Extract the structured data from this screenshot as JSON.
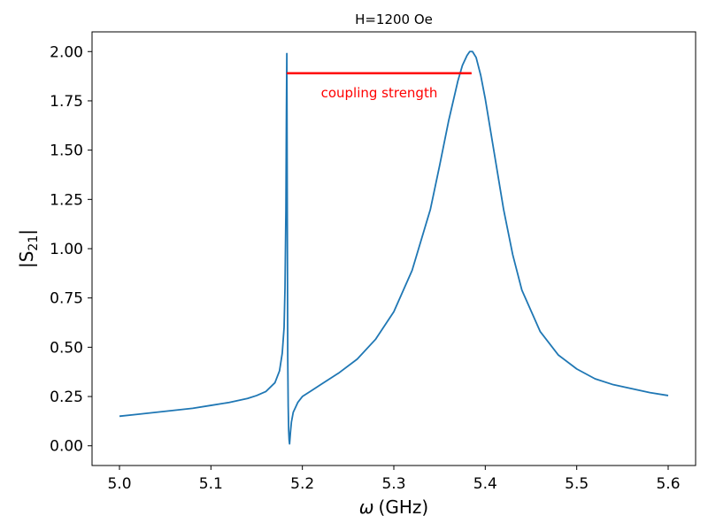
{
  "chart_data": {
    "type": "line",
    "title": "H=1200 Oe",
    "xlabel": "ω (GHz)",
    "xlabel_symbol": "ω",
    "xlabel_unit": "(GHz)",
    "ylabel": "|S21|",
    "ylabel_main": "|S",
    "ylabel_sub": "21",
    "ylabel_end": "|",
    "xlim": [
      4.97,
      5.63
    ],
    "ylim": [
      -0.1,
      2.1
    ],
    "xticks": [
      5.0,
      5.1,
      5.2,
      5.3,
      5.4,
      5.5,
      5.6
    ],
    "xtick_labels": [
      "5.0",
      "5.1",
      "5.2",
      "5.3",
      "5.4",
      "5.5",
      "5.6"
    ],
    "yticks": [
      0.0,
      0.25,
      0.5,
      0.75,
      1.0,
      1.25,
      1.5,
      1.75,
      2.0
    ],
    "ytick_labels": [
      "0.00",
      "0.25",
      "0.50",
      "0.75",
      "1.00",
      "1.25",
      "1.50",
      "1.75",
      "2.00"
    ],
    "grid": false,
    "series": [
      {
        "color": "#1f77b4",
        "x": [
          5.0,
          5.02,
          5.04,
          5.06,
          5.08,
          5.1,
          5.12,
          5.14,
          5.15,
          5.16,
          5.17,
          5.175,
          5.178,
          5.18,
          5.181,
          5.182,
          5.1825,
          5.183,
          5.1833,
          5.1837,
          5.184,
          5.1845,
          5.185,
          5.1855,
          5.186,
          5.187,
          5.188,
          5.19,
          5.195,
          5.2,
          5.21,
          5.22,
          5.24,
          5.26,
          5.28,
          5.3,
          5.32,
          5.34,
          5.35,
          5.36,
          5.37,
          5.375,
          5.38,
          5.383,
          5.386,
          5.39,
          5.395,
          5.4,
          5.41,
          5.42,
          5.43,
          5.44,
          5.46,
          5.48,
          5.5,
          5.52,
          5.54,
          5.56,
          5.58,
          5.6
        ],
        "y": [
          0.15,
          0.16,
          0.17,
          0.18,
          0.19,
          0.205,
          0.22,
          0.24,
          0.255,
          0.275,
          0.32,
          0.38,
          0.47,
          0.6,
          0.8,
          1.2,
          1.65,
          1.99,
          1.5,
          0.9,
          0.45,
          0.2,
          0.08,
          0.03,
          0.01,
          0.07,
          0.12,
          0.17,
          0.22,
          0.25,
          0.28,
          0.31,
          0.37,
          0.44,
          0.54,
          0.68,
          0.89,
          1.2,
          1.42,
          1.65,
          1.85,
          1.93,
          1.98,
          2.0,
          2.0,
          1.97,
          1.88,
          1.76,
          1.48,
          1.2,
          0.97,
          0.79,
          0.58,
          0.46,
          0.39,
          0.34,
          0.31,
          0.29,
          0.27,
          0.255
        ]
      }
    ],
    "annotations": [
      {
        "type": "hline",
        "color": "#ff0000",
        "y": 1.89,
        "x0": 5.183,
        "x1": 5.385
      },
      {
        "type": "text",
        "text": "coupling strength",
        "color": "#ff0000",
        "x": 5.284,
        "y": 1.79
      }
    ]
  }
}
